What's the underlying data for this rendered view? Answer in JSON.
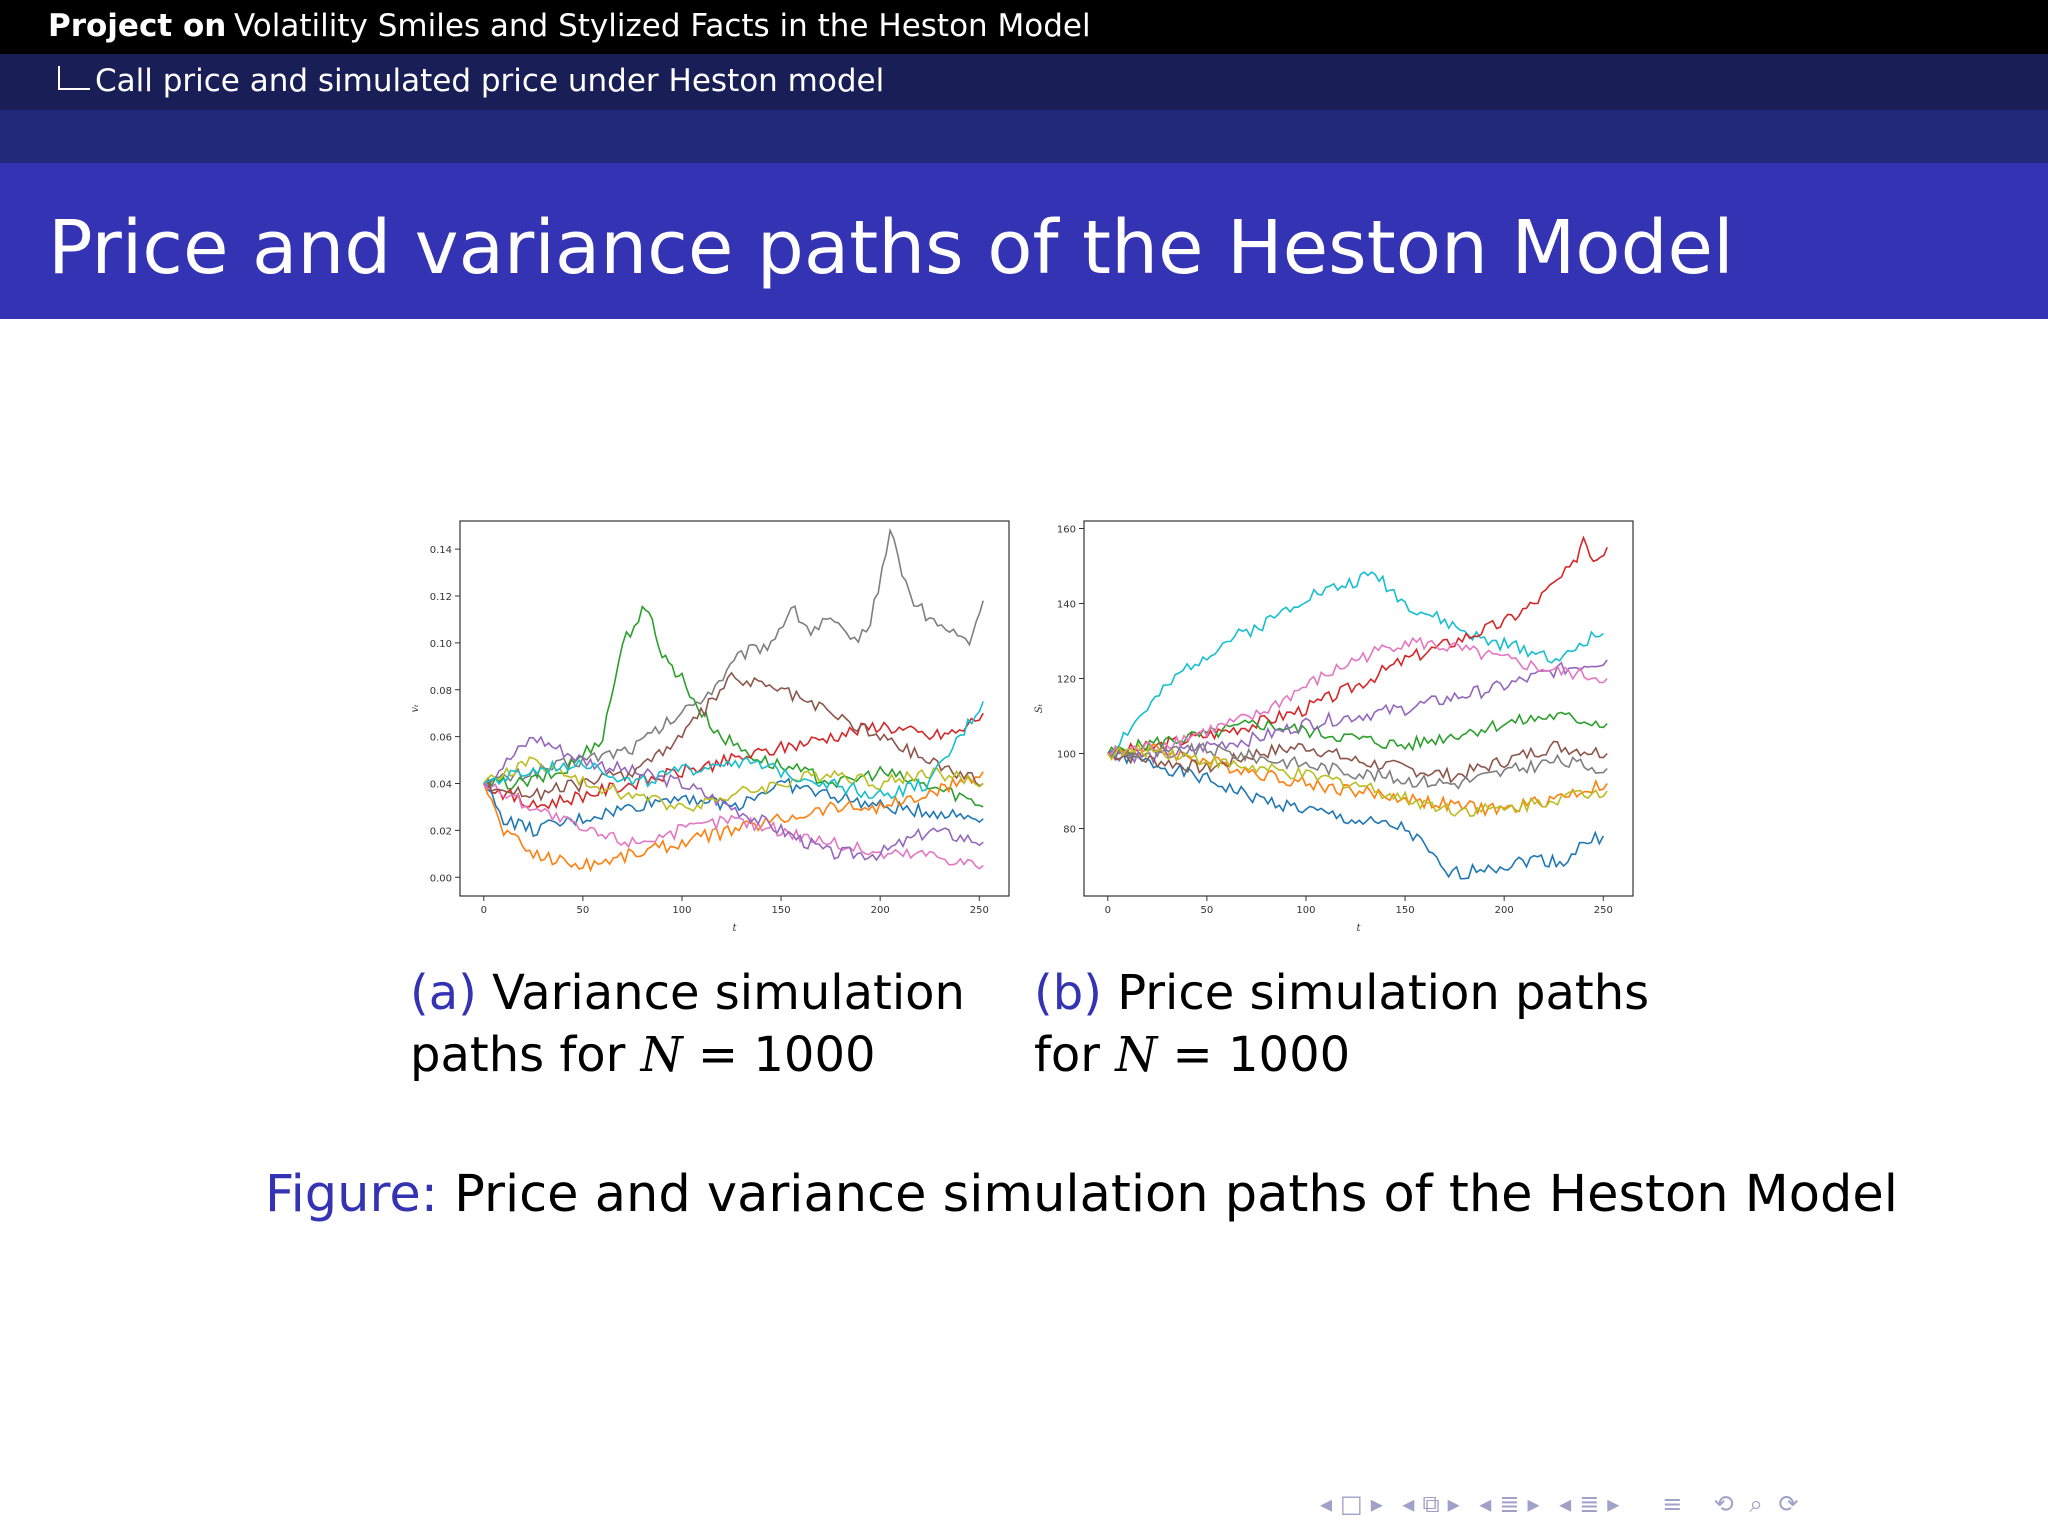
{
  "header": {
    "project_label": "Project on",
    "project_title": "Volatility Smiles and Stylized Facts in the Heston Model",
    "section": "Call price and simulated price under Heston model"
  },
  "slide": {
    "title": "Price and variance paths of the Heston Model"
  },
  "subfigures": [
    {
      "label": "(a)",
      "caption_line1": "Variance simulation",
      "caption_line2_prefix": "paths for",
      "caption_math_var": "N",
      "caption_math_rest": " = 1000"
    },
    {
      "label": "(b)",
      "caption_line1": "Price simulation paths",
      "caption_line2_prefix": "for",
      "caption_math_var": "N",
      "caption_math_rest": " = 1000"
    }
  ],
  "figure_caption": {
    "label": "Figure:",
    "text": "Price and variance simulation paths of the Heston Model"
  },
  "nav_icons": [
    "nav-left-icon",
    "frame-icon",
    "nav-right-icon",
    "subsection-icon",
    "section-icon",
    "align-icon",
    "search-icon"
  ],
  "chart_data": [
    {
      "type": "line",
      "xlabel": "t",
      "ylabel": "vₜ",
      "xlim": [
        -12,
        265
      ],
      "ylim": [
        -0.008,
        0.152
      ],
      "xticks": [
        0,
        50,
        100,
        150,
        200,
        250
      ],
      "yticks": [
        0.0,
        0.02,
        0.04,
        0.06,
        0.08,
        0.1,
        0.12,
        0.14
      ],
      "ytick_labels": [
        "0.00",
        "0.02",
        "0.04",
        "0.06",
        "0.08",
        "0.10",
        "0.12",
        "0.14"
      ],
      "grid": false,
      "legend": "none",
      "series": [
        {
          "color": "#7f7f7f",
          "x": [
            0,
            25,
            50,
            75,
            100,
            115,
            130,
            145,
            155,
            165,
            175,
            185,
            195,
            205,
            215,
            225,
            235,
            245,
            252
          ],
          "values": [
            0.04,
            0.045,
            0.05,
            0.055,
            0.07,
            0.08,
            0.095,
            0.1,
            0.115,
            0.105,
            0.11,
            0.1,
            0.108,
            0.148,
            0.12,
            0.11,
            0.105,
            0.1,
            0.118
          ]
        },
        {
          "color": "#2ca02c",
          "x": [
            0,
            20,
            40,
            60,
            70,
            80,
            85,
            90,
            95,
            100,
            110,
            120,
            140,
            160,
            180,
            200,
            220,
            240,
            252
          ],
          "values": [
            0.04,
            0.04,
            0.045,
            0.06,
            0.1,
            0.113,
            0.11,
            0.095,
            0.09,
            0.085,
            0.07,
            0.06,
            0.05,
            0.045,
            0.04,
            0.045,
            0.04,
            0.035,
            0.03
          ]
        },
        {
          "color": "#d62728",
          "x": [
            0,
            25,
            50,
            75,
            100,
            125,
            150,
            175,
            200,
            225,
            240,
            252
          ],
          "values": [
            0.04,
            0.03,
            0.035,
            0.04,
            0.045,
            0.05,
            0.055,
            0.06,
            0.065,
            0.06,
            0.062,
            0.07
          ]
        },
        {
          "color": "#1f77b4",
          "x": [
            0,
            10,
            25,
            50,
            75,
            100,
            125,
            150,
            175,
            200,
            225,
            252
          ],
          "values": [
            0.04,
            0.025,
            0.02,
            0.025,
            0.03,
            0.035,
            0.03,
            0.04,
            0.035,
            0.03,
            0.028,
            0.025
          ]
        },
        {
          "color": "#ff7f0e",
          "x": [
            0,
            10,
            25,
            50,
            75,
            100,
            125,
            150,
            175,
            200,
            225,
            252
          ],
          "values": [
            0.04,
            0.02,
            0.01,
            0.005,
            0.01,
            0.015,
            0.02,
            0.025,
            0.03,
            0.03,
            0.035,
            0.045
          ]
        },
        {
          "color": "#e377c2",
          "x": [
            0,
            25,
            50,
            75,
            100,
            125,
            150,
            175,
            200,
            225,
            252
          ],
          "values": [
            0.04,
            0.03,
            0.02,
            0.015,
            0.02,
            0.025,
            0.02,
            0.015,
            0.01,
            0.01,
            0.005
          ]
        },
        {
          "color": "#9467bd",
          "x": [
            0,
            25,
            50,
            75,
            100,
            125,
            150,
            175,
            200,
            225,
            252
          ],
          "values": [
            0.04,
            0.06,
            0.05,
            0.045,
            0.04,
            0.03,
            0.02,
            0.01,
            0.01,
            0.02,
            0.015
          ]
        },
        {
          "color": "#8c564b",
          "x": [
            0,
            25,
            50,
            75,
            100,
            125,
            150,
            175,
            200,
            225,
            252
          ],
          "values": [
            0.04,
            0.035,
            0.04,
            0.045,
            0.06,
            0.085,
            0.08,
            0.07,
            0.06,
            0.05,
            0.04
          ]
        },
        {
          "color": "#bcbd22",
          "x": [
            0,
            25,
            50,
            75,
            100,
            125,
            150,
            175,
            200,
            225,
            252
          ],
          "values": [
            0.04,
            0.05,
            0.04,
            0.035,
            0.03,
            0.035,
            0.04,
            0.045,
            0.04,
            0.045,
            0.04
          ]
        },
        {
          "color": "#17becf",
          "x": [
            0,
            25,
            50,
            75,
            100,
            125,
            150,
            175,
            200,
            225,
            252
          ],
          "values": [
            0.04,
            0.045,
            0.05,
            0.04,
            0.045,
            0.05,
            0.045,
            0.04,
            0.035,
            0.04,
            0.075
          ]
        }
      ]
    },
    {
      "type": "line",
      "xlabel": "t",
      "ylabel": "Sₜ",
      "xlim": [
        -12,
        265
      ],
      "ylim": [
        62,
        162
      ],
      "xticks": [
        0,
        50,
        100,
        150,
        200,
        250
      ],
      "yticks": [
        80,
        100,
        120,
        140,
        160
      ],
      "ytick_labels": [
        "80",
        "100",
        "120",
        "140",
        "160"
      ],
      "grid": false,
      "legend": "none",
      "series": [
        {
          "color": "#1f77b4",
          "x": [
            0,
            25,
            50,
            75,
            100,
            125,
            150,
            160,
            170,
            180,
            190,
            200,
            215,
            230,
            240,
            250
          ],
          "values": [
            100,
            97,
            93,
            88,
            85,
            82,
            80,
            75,
            68,
            68,
            70,
            70,
            72,
            71,
            76,
            78
          ]
        },
        {
          "color": "#17becf",
          "x": [
            0,
            20,
            40,
            60,
            80,
            100,
            120,
            135,
            150,
            170,
            190,
            210,
            230,
            240,
            250
          ],
          "values": [
            100,
            112,
            123,
            130,
            135,
            142,
            145,
            148,
            140,
            135,
            130,
            128,
            125,
            130,
            132
          ]
        },
        {
          "color": "#d62728",
          "x": [
            0,
            25,
            50,
            75,
            100,
            125,
            150,
            175,
            200,
            215,
            225,
            235,
            240,
            245,
            252
          ],
          "values": [
            100,
            102,
            105,
            108,
            112,
            118,
            125,
            130,
            135,
            140,
            145,
            150,
            158,
            152,
            155
          ]
        },
        {
          "color": "#ff7f0e",
          "x": [
            0,
            25,
            50,
            75,
            100,
            125,
            150,
            175,
            200,
            225,
            252
          ],
          "values": [
            100,
            101,
            98,
            95,
            92,
            90,
            88,
            86,
            85,
            88,
            92
          ]
        },
        {
          "color": "#2ca02c",
          "x": [
            0,
            25,
            50,
            75,
            100,
            125,
            150,
            175,
            200,
            225,
            252
          ],
          "values": [
            100,
            103,
            105,
            108,
            106,
            104,
            102,
            105,
            108,
            110,
            108
          ]
        },
        {
          "color": "#9467bd",
          "x": [
            0,
            25,
            50,
            75,
            100,
            125,
            150,
            175,
            200,
            225,
            252
          ],
          "values": [
            100,
            99,
            102,
            104,
            108,
            110,
            112,
            115,
            118,
            122,
            125
          ]
        },
        {
          "color": "#8c564b",
          "x": [
            0,
            25,
            50,
            75,
            100,
            125,
            150,
            175,
            200,
            225,
            252
          ],
          "values": [
            100,
            98,
            96,
            100,
            102,
            98,
            96,
            94,
            98,
            102,
            100
          ]
        },
        {
          "color": "#e377c2",
          "x": [
            0,
            25,
            50,
            75,
            100,
            125,
            150,
            175,
            200,
            225,
            252
          ],
          "values": [
            100,
            102,
            106,
            110,
            118,
            125,
            130,
            128,
            125,
            122,
            120
          ]
        },
        {
          "color": "#7f7f7f",
          "x": [
            0,
            25,
            50,
            75,
            100,
            125,
            150,
            175,
            200,
            225,
            252
          ],
          "values": [
            100,
            100,
            101,
            99,
            97,
            95,
            93,
            92,
            95,
            98,
            96
          ]
        },
        {
          "color": "#bcbd22",
          "x": [
            0,
            25,
            50,
            75,
            100,
            125,
            150,
            175,
            200,
            225,
            252
          ],
          "values": [
            100,
            101,
            98,
            96,
            94,
            92,
            88,
            85,
            85,
            88,
            90
          ]
        }
      ]
    }
  ]
}
